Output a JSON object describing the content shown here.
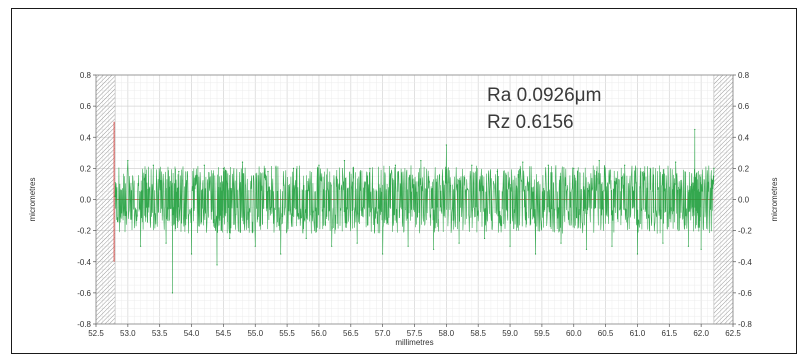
{
  "chart_data": {
    "type": "line",
    "title": "",
    "xlabel": "millimetres",
    "ylabel": "micrometres",
    "ylabel_right": "micrometres",
    "xlim": [
      52.5,
      62.5
    ],
    "ylim": [
      -0.8,
      0.8
    ],
    "x_ticks": [
      52.5,
      53.0,
      53.5,
      54.0,
      54.5,
      55.0,
      55.5,
      56.0,
      56.5,
      57.0,
      57.5,
      58.0,
      58.5,
      59.0,
      59.5,
      60.0,
      60.5,
      61.0,
      61.5,
      62.0,
      62.5
    ],
    "x_tick_labels": [
      "52.5",
      "53.0",
      "53.5",
      "54.0",
      "54.5",
      "55.0",
      "55.5",
      "56.0",
      "56.5",
      "57.0",
      "57.5",
      "58.0",
      "58.5",
      "59.0",
      "59.5",
      "60.0",
      "60.5",
      "61.0",
      "61.5",
      "62.0",
      "62.5"
    ],
    "y_ticks": [
      0.8,
      0.6,
      0.4,
      0.2,
      0.0,
      -0.2,
      -0.4,
      -0.6,
      -0.8
    ],
    "y_tick_labels": [
      "0.8",
      "0.6",
      "0.4",
      "0.2",
      "0.0",
      "-0.2",
      "-0.4",
      "-0.6",
      "-0.8"
    ],
    "grid": true,
    "zero_line_color": "#d9534f",
    "series_color": "#1e9e3c",
    "excluded_regions": [
      [
        52.5,
        52.8
      ],
      [
        62.2,
        62.5
      ]
    ],
    "annotations": [
      "Ra 0.0926μm",
      "Rz 0.6156"
    ],
    "series": [
      {
        "x": [
          52.8,
          53.0,
          53.2,
          53.4,
          53.6,
          53.7,
          53.8,
          54.0,
          54.2,
          54.4,
          54.5,
          54.6,
          54.8,
          55.0,
          55.2,
          55.4,
          55.6,
          55.8,
          56.0,
          56.2,
          56.4,
          56.6,
          56.8,
          57.0,
          57.2,
          57.4,
          57.6,
          57.8,
          58.0,
          58.2,
          58.4,
          58.6,
          58.8,
          59.0,
          59.2,
          59.4,
          59.6,
          59.8,
          60.0,
          60.2,
          60.4,
          60.6,
          60.8,
          61.0,
          61.2,
          61.4,
          61.6,
          61.8,
          61.9,
          62.0,
          62.2
        ],
        "y": [
          0.02,
          0.25,
          -0.3,
          0.22,
          -0.28,
          -0.6,
          0.18,
          -0.35,
          0.22,
          -0.42,
          0.2,
          -0.25,
          0.24,
          -0.3,
          0.18,
          -0.35,
          0.2,
          -0.25,
          0.22,
          -0.3,
          0.25,
          -0.28,
          0.2,
          -0.35,
          0.22,
          -0.3,
          0.25,
          -0.32,
          0.35,
          -0.28,
          0.22,
          -0.25,
          0.18,
          -0.3,
          0.24,
          -0.35,
          0.22,
          -0.28,
          0.2,
          -0.32,
          0.25,
          -0.3,
          0.22,
          -0.35,
          0.2,
          -0.28,
          0.24,
          -0.3,
          0.45,
          -0.32,
          0.2
        ]
      }
    ]
  }
}
